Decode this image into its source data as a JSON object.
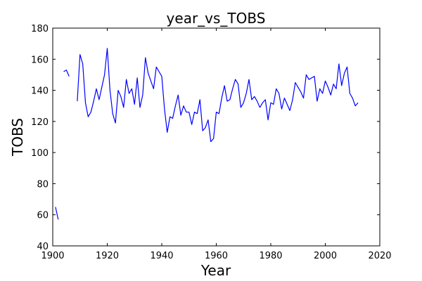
{
  "chart_data": {
    "type": "line",
    "title": "year_vs_TOBS",
    "xlabel": "Year",
    "ylabel": "TOBS",
    "xlim": [
      1900,
      2020
    ],
    "ylim": [
      40,
      180
    ],
    "xticks": [
      1900,
      1920,
      1940,
      1960,
      1980,
      2000,
      2020
    ],
    "yticks": [
      40,
      60,
      80,
      100,
      120,
      140,
      160,
      180
    ],
    "grid": false,
    "line_color": "#0000ff",
    "series": [
      {
        "segments": [
          {
            "x": [
              1901,
              1902
            ],
            "y": [
              65,
              57
            ]
          },
          {
            "x": [
              1904,
              1905,
              1906
            ],
            "y": [
              152,
              153,
              149
            ]
          },
          {
            "x": [
              1909,
              1910,
              1911,
              1912,
              1913,
              1914,
              1915,
              1916,
              1917,
              1918,
              1919,
              1920,
              1921,
              1922,
              1923,
              1924,
              1925,
              1926,
              1927,
              1928,
              1929,
              1930,
              1931,
              1932,
              1933,
              1934,
              1935,
              1936,
              1937,
              1938,
              1939,
              1940,
              1941,
              1942,
              1943,
              1944,
              1945,
              1946,
              1947,
              1948,
              1949,
              1950,
              1951,
              1952,
              1953,
              1954,
              1955,
              1956,
              1957,
              1958,
              1959,
              1960,
              1961,
              1962,
              1963,
              1964,
              1965,
              1966,
              1967,
              1968,
              1969,
              1970,
              1971,
              1972,
              1973,
              1974,
              1975,
              1976,
              1977,
              1978,
              1979,
              1980,
              1981,
              1982,
              1983,
              1984,
              1985,
              1986,
              1987,
              1988,
              1989,
              1990,
              1991,
              1992,
              1993,
              1994,
              1995,
              1996,
              1997,
              1998,
              1999,
              2000,
              2001,
              2002,
              2003,
              2004,
              2005,
              2006,
              2007,
              2008,
              2009,
              2010,
              2011,
              2012
            ],
            "y": [
              133,
              163,
              157,
              132,
              123,
              126,
              133,
              141,
              134,
              142,
              150,
              167,
              140,
              125,
              119,
              140,
              136,
              129,
              147,
              138,
              141,
              131,
              148,
              129,
              137,
              161,
              151,
              146,
              141,
              155,
              152,
              149,
              128,
              113,
              123,
              122,
              130,
              137,
              124,
              130,
              126,
              126,
              118,
              126,
              125,
              134,
              114,
              116,
              121,
              107,
              109,
              126,
              125,
              135,
              143,
              133,
              134,
              141,
              147,
              144,
              129,
              132,
              138,
              147,
              134,
              136,
              133,
              129,
              132,
              134,
              121,
              132,
              131,
              141,
              138,
              128,
              135,
              131,
              127,
              134,
              145,
              142,
              139,
              135,
              150,
              147,
              148,
              149,
              133,
              141,
              138,
              146,
              142,
              137,
              144,
              141,
              157,
              143,
              151,
              155,
              138,
              135,
              130,
              132
            ]
          }
        ]
      }
    ]
  }
}
